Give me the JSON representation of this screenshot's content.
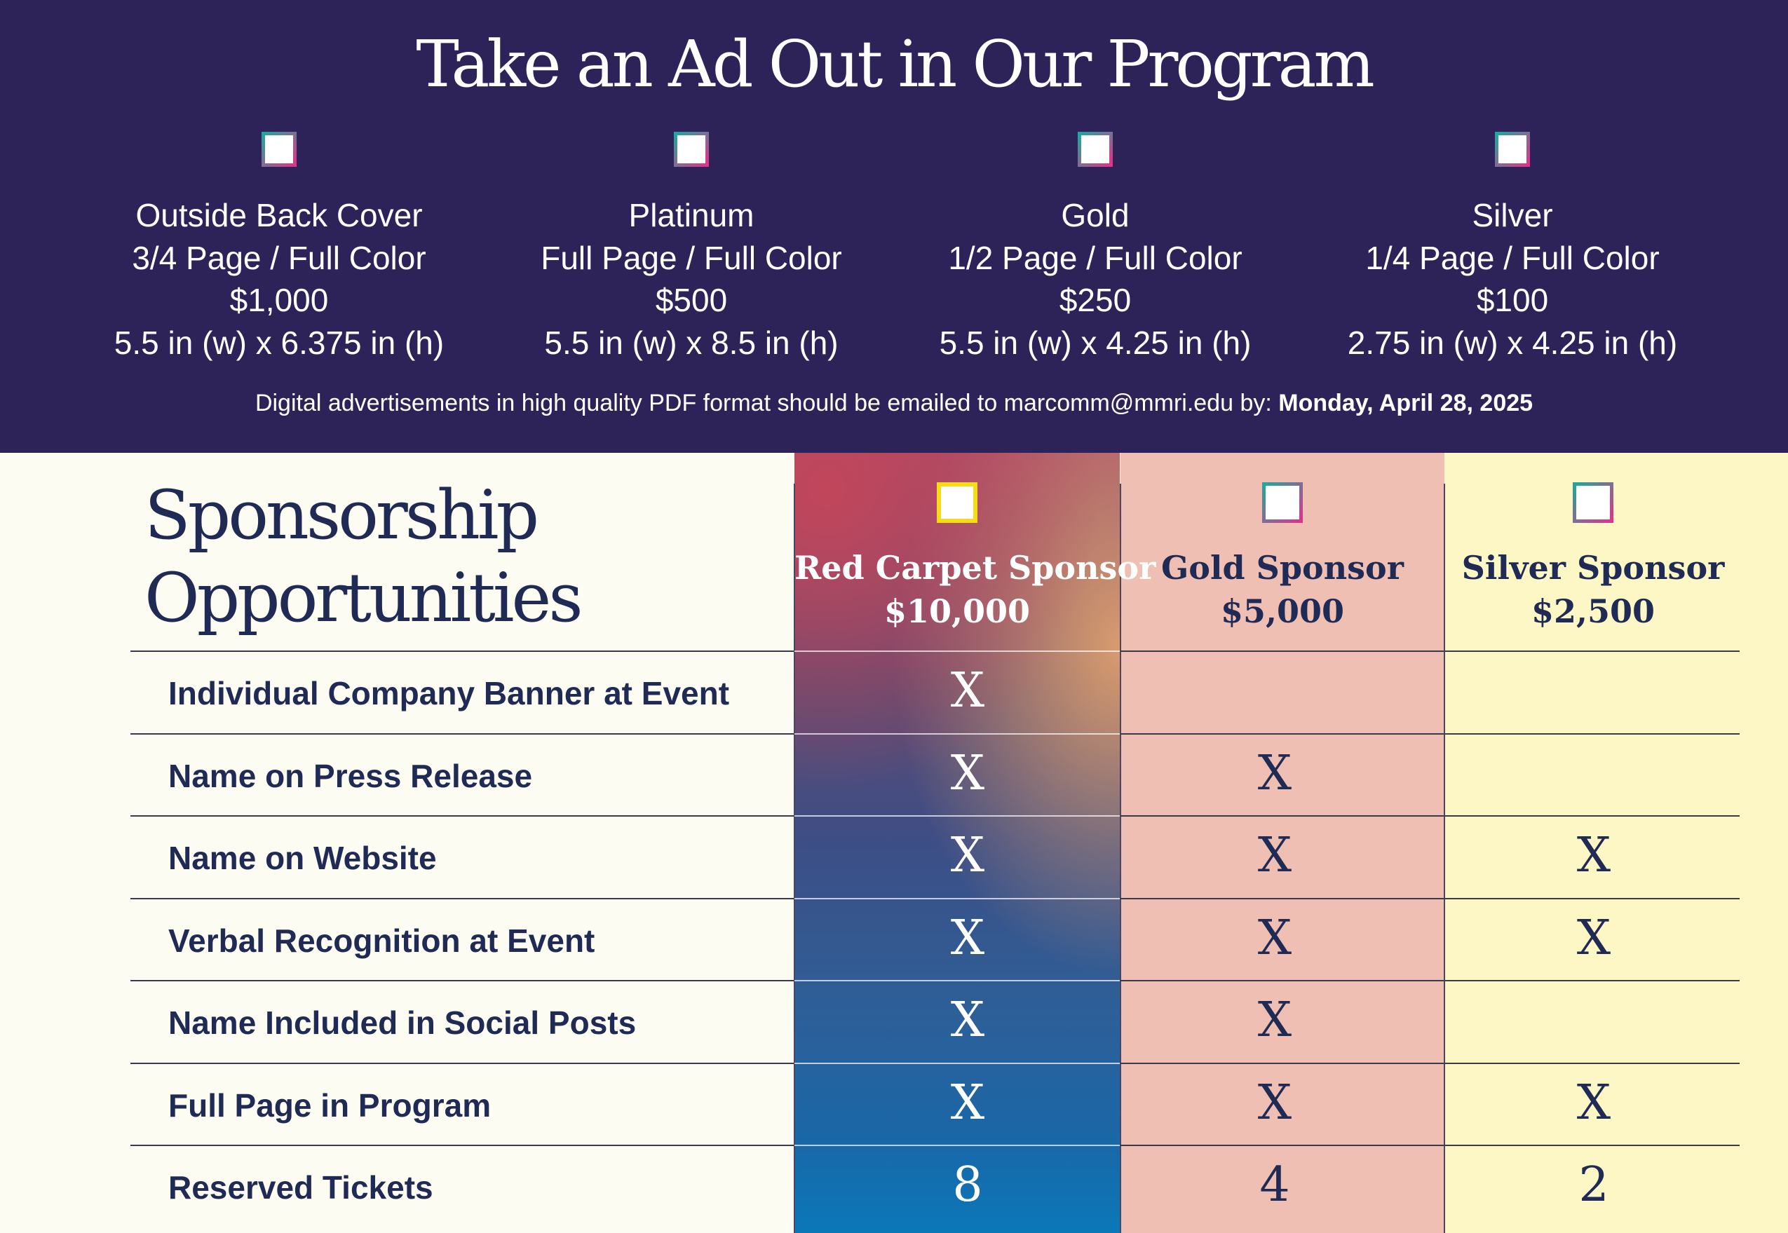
{
  "ad_section": {
    "title": "Take an Ad Out in Our Program",
    "options": [
      {
        "name": "Outside Back Cover",
        "size_desc": "3/4 Page / Full Color",
        "price": "$1,000",
        "dimensions": "5.5 in (w) x 6.375 in (h)"
      },
      {
        "name": "Platinum",
        "size_desc": "Full Page / Full Color",
        "price": "$500",
        "dimensions": "5.5 in (w) x 8.5 in (h)"
      },
      {
        "name": "Gold",
        "size_desc": "1/2 Page / Full Color",
        "price": "$250",
        "dimensions": "5.5 in (w) x 4.25 in (h)"
      },
      {
        "name": "Silver",
        "size_desc": "1/4 Page / Full Color",
        "price": "$100",
        "dimensions": "2.75 in (w) x 4.25 in (h)"
      }
    ],
    "note_prefix": "Digital advertisements in high quality PDF format should be emailed to marcomm@mmri.edu by: ",
    "note_deadline": "Monday, April 28, 2025"
  },
  "sponsorship": {
    "title_line1": "Sponsorship",
    "title_line2": "Opportunities",
    "tiers": [
      {
        "name": "Red Carpet Sponsor",
        "price": "$10,000",
        "color": "#ffffff"
      },
      {
        "name": "Gold Sponsor",
        "price": "$5,000",
        "color": "#1f2a55"
      },
      {
        "name": "Silver Sponsor",
        "price": "$2,500",
        "color": "#1f2a55"
      }
    ],
    "rows": [
      {
        "label": "Individual Company Banner at Event",
        "values": [
          "X",
          "",
          ""
        ]
      },
      {
        "label": "Name on Press Release",
        "values": [
          "X",
          "X",
          ""
        ]
      },
      {
        "label": "Name on Website",
        "values": [
          "X",
          "X",
          "X"
        ]
      },
      {
        "label": "Verbal Recognition at Event",
        "values": [
          "X",
          "X",
          "X"
        ]
      },
      {
        "label": "Name Included in Social Posts",
        "values": [
          "X",
          "X",
          ""
        ]
      },
      {
        "label": "Full Page in Program",
        "values": [
          "X",
          "X",
          "X"
        ]
      },
      {
        "label": "Reserved Tickets",
        "values": [
          "8",
          "4",
          "2"
        ]
      }
    ]
  }
}
